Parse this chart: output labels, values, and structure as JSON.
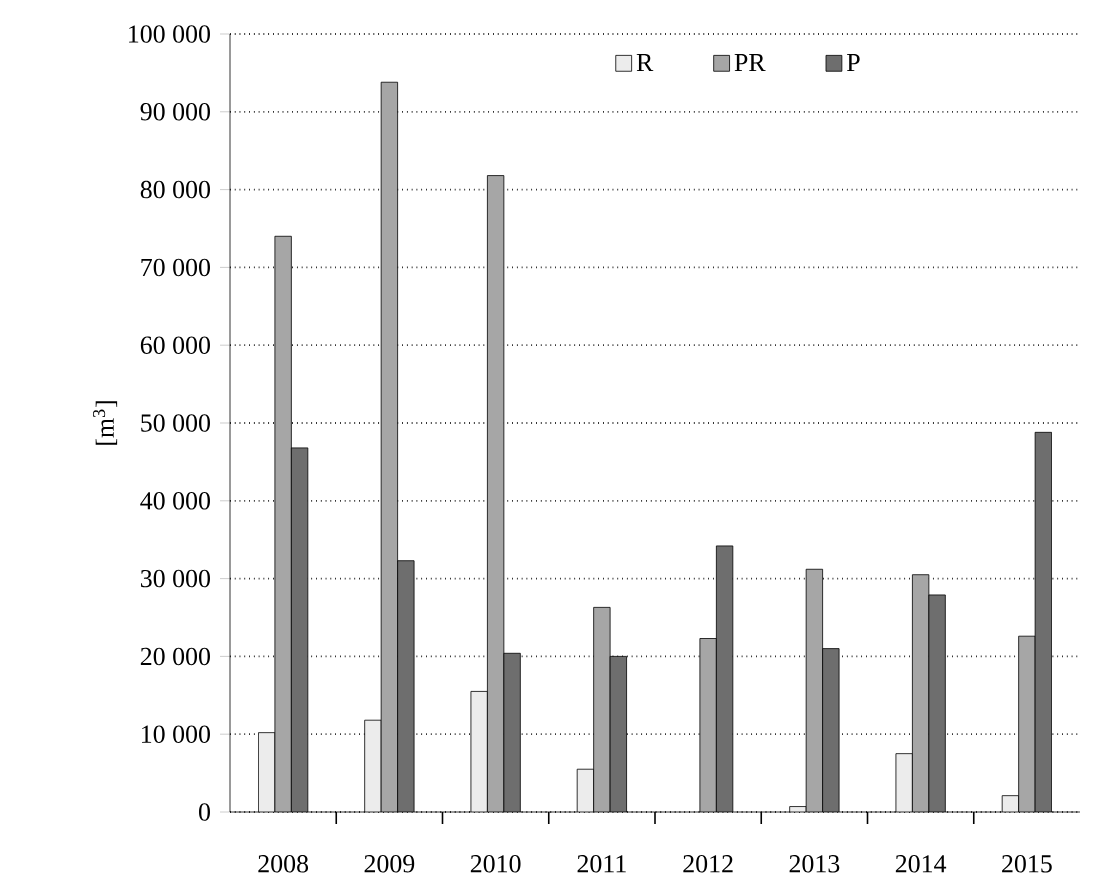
{
  "chart_data": {
    "type": "bar",
    "ylabel": "[m$^{3}$]",
    "categories": [
      "2008",
      "2009",
      "2010",
      "2011",
      "2012",
      "2013",
      "2014",
      "2015"
    ],
    "series": [
      {
        "name": "R",
        "color": "#ececec",
        "values": [
          10200,
          11800,
          15500,
          5500,
          null,
          700,
          7500,
          2100
        ]
      },
      {
        "name": "PR",
        "color": "#a6a6a6",
        "values": [
          74000,
          93800,
          81800,
          26300,
          22300,
          31200,
          30500,
          22600
        ]
      },
      {
        "name": "P",
        "color": "#6e6e6e",
        "values": [
          46800,
          32300,
          20400,
          20000,
          34200,
          21000,
          27900,
          48800
        ]
      }
    ],
    "ylim": [
      0,
      100000
    ],
    "yticks": [
      {
        "value": 0,
        "label": "0"
      },
      {
        "value": 10000,
        "label": "10 000"
      },
      {
        "value": 20000,
        "label": "20 000"
      },
      {
        "value": 30000,
        "label": "30 000"
      },
      {
        "value": 40000,
        "label": "40 000"
      },
      {
        "value": 50000,
        "label": "50 000"
      },
      {
        "value": 60000,
        "label": "60 000"
      },
      {
        "value": 70000,
        "label": "70 000"
      },
      {
        "value": 80000,
        "label": "80 000"
      },
      {
        "value": 90000,
        "label": "90 000"
      },
      {
        "value": 100000,
        "label": "100 000"
      }
    ],
    "grid": "y",
    "legend": "top"
  }
}
